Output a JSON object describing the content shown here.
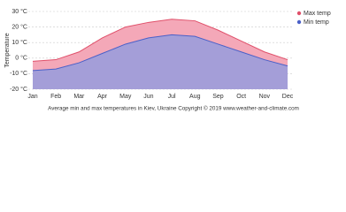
{
  "chart_data": {
    "type": "line",
    "y_label": "Temperature",
    "caption": "Average min and max temperatures in Kiev, Ukraine   Copyright © 2019 www.weather-and-climate.com",
    "categories": [
      "Jan",
      "Feb",
      "Mar",
      "Apr",
      "May",
      "Jun",
      "Jul",
      "Aug",
      "Sep",
      "Oct",
      "Nov",
      "Dec"
    ],
    "series": [
      {
        "name": "Max temp",
        "color": "#e0506a",
        "fill": "#f4a8b8",
        "values": [
          -2,
          -1,
          4,
          13,
          20,
          23,
          25,
          24,
          18,
          11,
          4,
          -1
        ]
      },
      {
        "name": "Min temp",
        "color": "#4a60c8",
        "fill": "#a49ed8",
        "values": [
          -8,
          -7,
          -3,
          3,
          9,
          13,
          15,
          14,
          9,
          4,
          -1,
          -5
        ]
      }
    ],
    "ylim": [
      -20,
      30
    ],
    "yticks": [
      {
        "value": -20,
        "label": "-20 °C"
      },
      {
        "value": -10,
        "label": "-10 °C"
      },
      {
        "value": 0,
        "label": "0 °C"
      },
      {
        "value": 10,
        "label": "10 °C"
      },
      {
        "value": 20,
        "label": "20 °C"
      },
      {
        "value": 30,
        "label": "30 °C"
      }
    ],
    "grid": true,
    "legend": "top-right"
  }
}
